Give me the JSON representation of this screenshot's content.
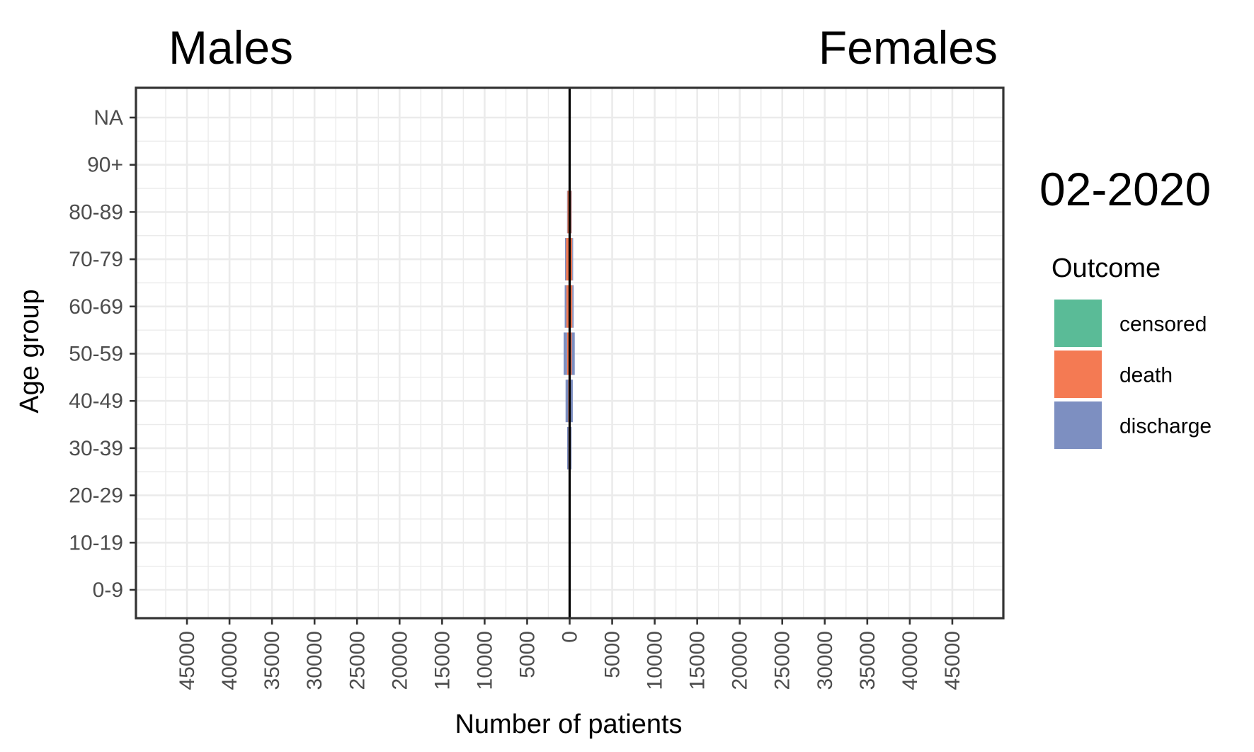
{
  "chart_data": {
    "type": "bar",
    "orientation": "horizontal",
    "subtype": "population-pyramid",
    "facets": {
      "left": "Males",
      "right": "Females"
    },
    "date_label": "02-2020",
    "xlabel": "Number of patients",
    "ylabel": "Age group",
    "categories": [
      "0-9",
      "10-19",
      "20-29",
      "30-39",
      "40-49",
      "50-59",
      "60-69",
      "70-79",
      "80-89",
      "90+",
      "NA"
    ],
    "x_ticks": [
      45000,
      40000,
      35000,
      30000,
      25000,
      20000,
      15000,
      10000,
      5000,
      0,
      5000,
      10000,
      15000,
      20000,
      25000,
      30000,
      35000,
      40000,
      45000
    ],
    "xlim": [
      -51000,
      51000
    ],
    "grid": true,
    "legend": {
      "title": "Outcome",
      "position": "right",
      "entries": [
        {
          "name": "censored",
          "color": "#5abb97"
        },
        {
          "name": "death",
          "color": "#f47a53"
        },
        {
          "name": "discharge",
          "color": "#7d8fc1"
        }
      ]
    },
    "series": [
      {
        "name": "censored",
        "color": "#5abb97",
        "males": [
          0,
          0,
          20,
          120,
          80,
          60,
          30,
          20,
          10,
          0,
          0
        ],
        "females": [
          0,
          0,
          10,
          80,
          60,
          50,
          20,
          10,
          5,
          0,
          0
        ]
      },
      {
        "name": "death",
        "color": "#f47a53",
        "males": [
          0,
          0,
          0,
          30,
          100,
          250,
          350,
          400,
          250,
          0,
          0
        ],
        "females": [
          0,
          0,
          0,
          20,
          60,
          200,
          300,
          300,
          200,
          0,
          0
        ]
      },
      {
        "name": "discharge",
        "color": "#7d8fc1",
        "males": [
          0,
          0,
          50,
          150,
          300,
          400,
          200,
          120,
          50,
          0,
          0
        ],
        "females": [
          0,
          0,
          40,
          120,
          250,
          350,
          150,
          100,
          40,
          0,
          0
        ]
      }
    ]
  }
}
